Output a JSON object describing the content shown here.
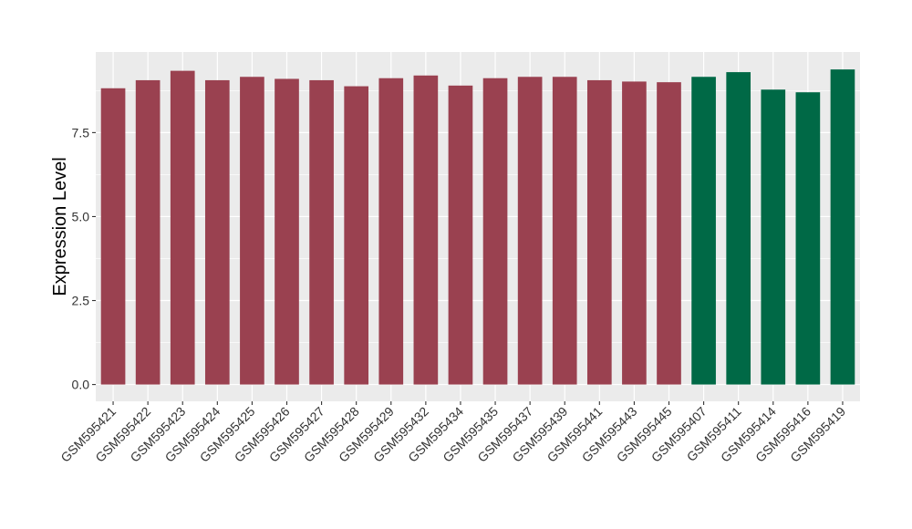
{
  "chart_data": {
    "type": "bar",
    "title": "",
    "xlabel": "",
    "ylabel": "Expression Level",
    "ylim": [
      -0.5,
      9.9
    ],
    "yticks": [
      0.0,
      2.5,
      5.0,
      7.5
    ],
    "ytick_labels": [
      "0.0",
      "2.5",
      "5.0",
      "7.5"
    ],
    "grid": true,
    "legend": "none",
    "panel_background": "#EBEBEB",
    "grid_color": "#FFFFFF",
    "categories": [
      "GSM595421",
      "GSM595422",
      "GSM595423",
      "GSM595424",
      "GSM595425",
      "GSM595426",
      "GSM595427",
      "GSM595428",
      "GSM595429",
      "GSM595432",
      "GSM595434",
      "GSM595435",
      "GSM595437",
      "GSM595439",
      "GSM595441",
      "GSM595443",
      "GSM595445",
      "GSM595407",
      "GSM595411",
      "GSM595414",
      "GSM595416",
      "GSM595419"
    ],
    "values": [
      8.82,
      9.06,
      9.34,
      9.06,
      9.16,
      9.1,
      9.06,
      8.88,
      9.12,
      9.2,
      8.9,
      9.12,
      9.16,
      9.16,
      9.06,
      9.02,
      9.0,
      9.16,
      9.3,
      8.78,
      8.7,
      9.38
    ],
    "colors": [
      "#9A4150",
      "#9A4150",
      "#9A4150",
      "#9A4150",
      "#9A4150",
      "#9A4150",
      "#9A4150",
      "#9A4150",
      "#9A4150",
      "#9A4150",
      "#9A4150",
      "#9A4150",
      "#9A4150",
      "#9A4150",
      "#9A4150",
      "#9A4150",
      "#9A4150",
      "#006946",
      "#006946",
      "#006946",
      "#006946",
      "#006946"
    ]
  }
}
